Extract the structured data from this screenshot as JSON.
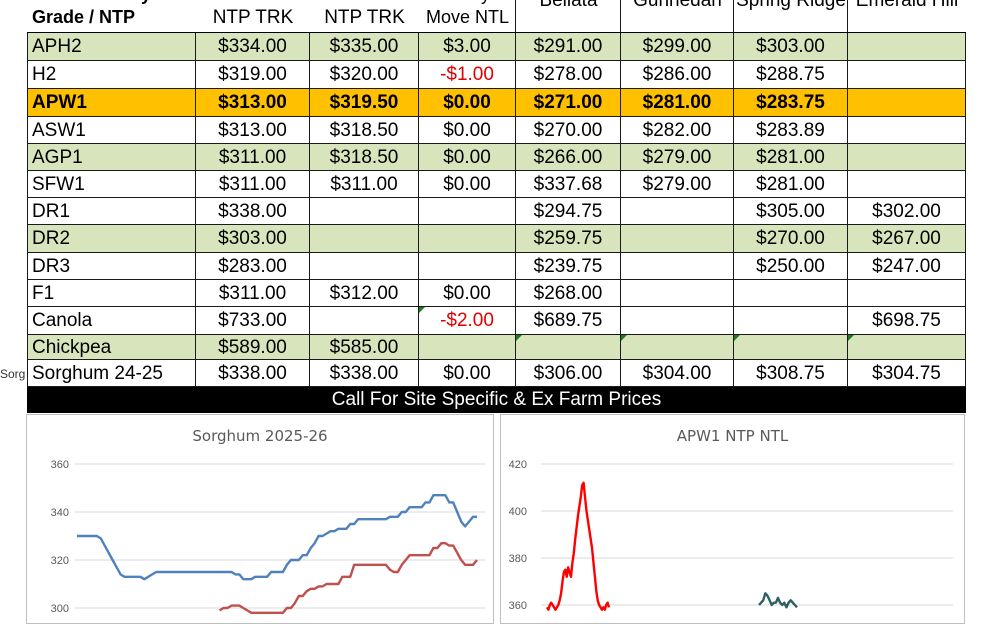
{
  "table": {
    "columns": [
      "Grade / NTP",
      "NTP TRK",
      "NTP TRK",
      "Move NTL",
      "Bellata",
      "Gunnedah",
      "Spring Ridge",
      "Emerald Hill"
    ],
    "header_partial": "y",
    "rows": [
      {
        "grade": "APH2",
        "trk1": "$334.00",
        "trk2": "$335.00",
        "move": "$3.00",
        "bellata": "$291.00",
        "gunnedah": "$299.00",
        "spring_ridge": "$303.00",
        "emerald_hill": "",
        "fill": "#d8e4bc"
      },
      {
        "grade": "H2",
        "trk1": "$319.00",
        "trk2": "$320.00",
        "move": "-$1.00",
        "bellata": "$278.00",
        "gunnedah": "$286.00",
        "spring_ridge": "$288.75",
        "emerald_hill": "",
        "fill": "#ffffff"
      },
      {
        "grade": "APW1",
        "trk1": "$313.00",
        "trk2": "$319.50",
        "move": "$0.00",
        "bellata": "$271.00",
        "gunnedah": "$281.00",
        "spring_ridge": "$283.75",
        "emerald_hill": "",
        "fill": "#ffc000"
      },
      {
        "grade": "ASW1",
        "trk1": "$313.00",
        "trk2": "$318.50",
        "move": "$0.00",
        "bellata": "$270.00",
        "gunnedah": "$282.00",
        "spring_ridge": "$283.89",
        "emerald_hill": "",
        "fill": "#ffffff"
      },
      {
        "grade": "AGP1",
        "trk1": "$311.00",
        "trk2": "$318.50",
        "move": "$0.00",
        "bellata": "$266.00",
        "gunnedah": "$279.00",
        "spring_ridge": "$281.00",
        "emerald_hill": "",
        "fill": "#d8e4bc"
      },
      {
        "grade": "SFW1",
        "trk1": "$311.00",
        "trk2": "$311.00",
        "move": "$0.00",
        "bellata": "$337.68",
        "gunnedah": "$279.00",
        "spring_ridge": "$281.00",
        "emerald_hill": "",
        "fill": "#ffffff"
      },
      {
        "grade": "DR1",
        "trk1": "$338.00",
        "trk2": "",
        "move": "",
        "bellata": "$294.75",
        "gunnedah": "",
        "spring_ridge": "$305.00",
        "emerald_hill": "$302.00",
        "fill": "#ffffff"
      },
      {
        "grade": "DR2",
        "trk1": "$303.00",
        "trk2": "",
        "move": "",
        "bellata": "$259.75",
        "gunnedah": "",
        "spring_ridge": "$270.00",
        "emerald_hill": "$267.00",
        "fill": "#d8e4bc"
      },
      {
        "grade": "DR3",
        "trk1": "$283.00",
        "trk2": "",
        "move": "",
        "bellata": "$239.75",
        "gunnedah": "",
        "spring_ridge": "$250.00",
        "emerald_hill": "$247.00",
        "fill": "#ffffff"
      },
      {
        "grade": "F1",
        "trk1": "$311.00",
        "trk2": "$312.00",
        "move": "$0.00",
        "bellata": "$268.00",
        "gunnedah": "",
        "spring_ridge": "",
        "emerald_hill": "",
        "fill": "#ffffff"
      },
      {
        "grade": "Canola",
        "trk1": "$733.00",
        "trk2": "",
        "move": "-$2.00",
        "bellata": "$689.75",
        "gunnedah": "",
        "spring_ridge": "",
        "emerald_hill": "$698.75",
        "fill": "#ffffff"
      },
      {
        "grade": "Chickpea",
        "trk1": "$589.00",
        "trk2": "$585.00",
        "move": "",
        "bellata": "",
        "gunnedah": "",
        "spring_ridge": "",
        "emerald_hill": "",
        "fill": "#d8e4bc"
      },
      {
        "grade": "Sorghum 24-25",
        "trk1": "$338.00",
        "trk2": "$338.00",
        "move": "$0.00",
        "bellata": "$306.00",
        "gunnedah": "$304.00",
        "spring_ridge": "$308.75",
        "emerald_hill": "$304.75",
        "fill": "#ffffff"
      }
    ],
    "side_clip_text": "Sorg"
  },
  "banner": {
    "text": "Call For Site Specific & Ex Farm Prices"
  },
  "colors": {
    "green_row": "#d8e4bc",
    "highlight_row": "#ffc000",
    "negative": "#e00000",
    "banner_bg": "#000000",
    "blue_series": "#4f81bd",
    "red_series": "#c0504d",
    "bright_red_series": "#ff0000",
    "teal_series": "#2f5f5f"
  },
  "chart_data": [
    {
      "type": "line",
      "title": "Sorghum 2025-26",
      "ylim": [
        300,
        360
      ],
      "yticks": [
        300,
        320,
        340,
        360
      ],
      "series": [
        {
          "color": "#4f81bd",
          "values": [
            330,
            330,
            330,
            330,
            330,
            330,
            329,
            326,
            323,
            320,
            317,
            314,
            313,
            313,
            313,
            313,
            313,
            312,
            313,
            314,
            315,
            315,
            315,
            315,
            315,
            315,
            315,
            315,
            315,
            315,
            315,
            315,
            315,
            315,
            315,
            315,
            315,
            315,
            315,
            315,
            314,
            314,
            312,
            312,
            312,
            313,
            313,
            313,
            313,
            315,
            315,
            315,
            315,
            318,
            320,
            320,
            320,
            322,
            322,
            325,
            327,
            330,
            330,
            331,
            332,
            332,
            333,
            333,
            333,
            335,
            335,
            337,
            337,
            337,
            337,
            337,
            337,
            337,
            337,
            338,
            338,
            338,
            340,
            340,
            342,
            342,
            342,
            342,
            344,
            344,
            347,
            347,
            347,
            347,
            344,
            344,
            340,
            336,
            334,
            336,
            338,
            338
          ]
        },
        {
          "color": "#c0504d",
          "values": [
            null,
            null,
            null,
            null,
            null,
            null,
            null,
            null,
            null,
            null,
            null,
            null,
            null,
            null,
            null,
            null,
            null,
            null,
            null,
            null,
            null,
            null,
            null,
            null,
            null,
            null,
            null,
            null,
            null,
            null,
            null,
            null,
            null,
            null,
            null,
            null,
            299,
            300,
            300,
            301,
            301,
            301,
            300,
            299,
            298,
            298,
            298,
            298,
            298,
            298,
            298,
            298,
            298,
            300,
            300,
            302,
            305,
            305,
            307,
            308,
            308,
            309,
            309,
            310,
            310,
            310,
            310,
            313,
            313,
            313,
            318,
            318,
            318,
            318,
            318,
            318,
            318,
            318,
            318,
            316,
            315,
            315,
            318,
            320,
            322,
            322,
            322,
            322,
            322,
            322,
            325,
            325,
            327,
            327,
            326,
            326,
            323,
            320,
            318,
            318,
            318,
            320
          ]
        }
      ]
    },
    {
      "type": "line",
      "title": "APW1 NTP NTL",
      "ylim": [
        360,
        420
      ],
      "yticks": [
        360,
        380,
        400,
        420
      ],
      "series": [
        {
          "color": "#ff0000",
          "values": [
            359,
            358,
            360,
            361,
            360,
            359,
            358,
            359,
            360,
            362,
            365,
            370,
            374,
            375,
            372,
            376,
            374,
            372,
            378,
            382,
            388,
            393,
            398,
            402,
            406,
            411,
            412,
            406,
            400,
            396,
            392,
            388,
            384,
            378,
            372,
            366,
            362,
            360,
            359,
            358,
            359,
            358,
            360,
            361,
            359
          ]
        },
        {
          "color": "#2f5f5f",
          "values": [
            360,
            361,
            362,
            365,
            364,
            362,
            360,
            361,
            361,
            363,
            361,
            360,
            361,
            359,
            361,
            362,
            361,
            360,
            359
          ]
        }
      ]
    }
  ]
}
